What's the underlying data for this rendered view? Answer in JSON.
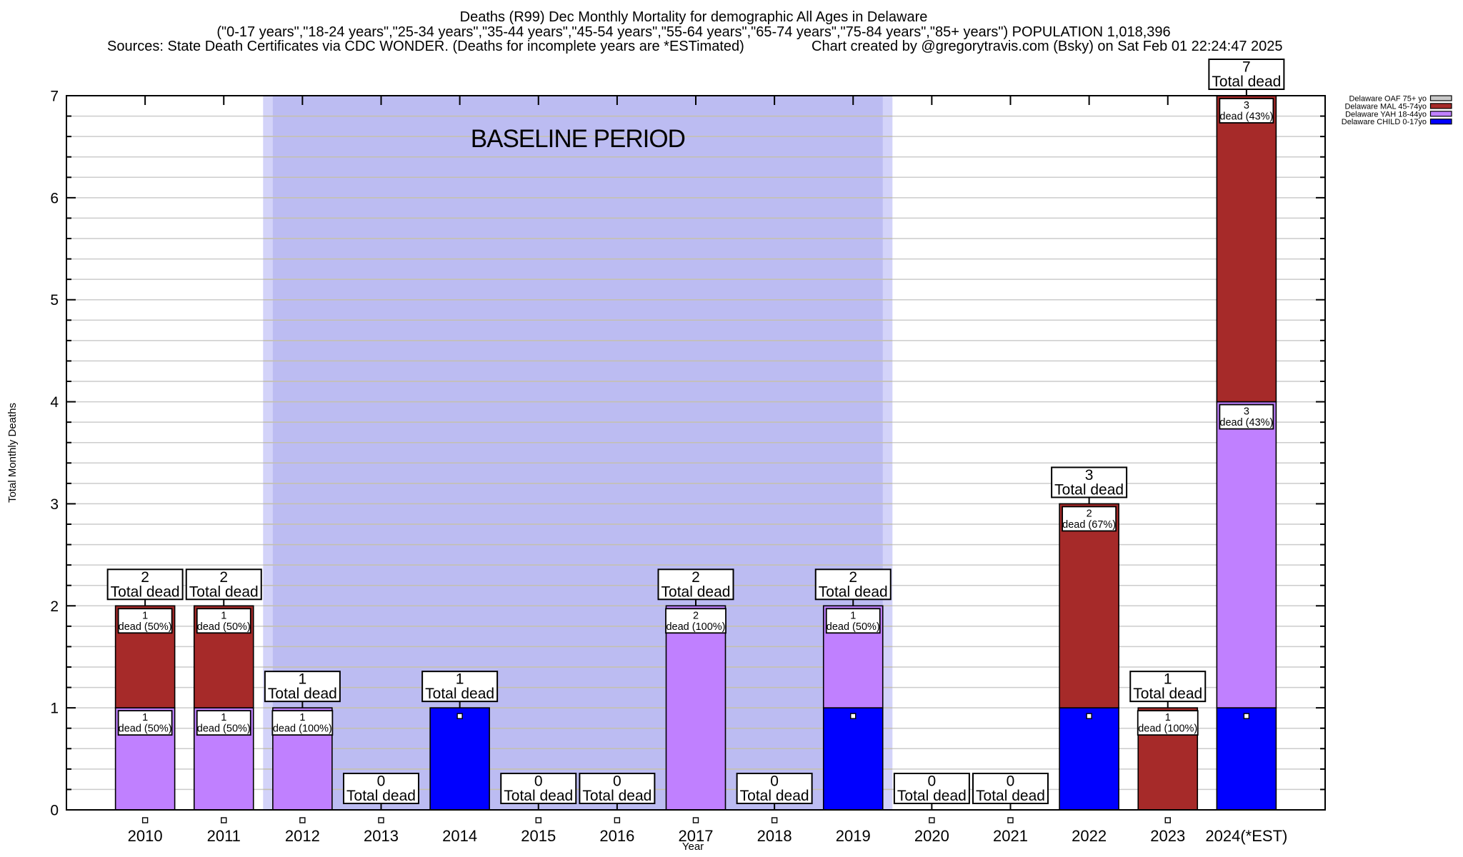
{
  "title": {
    "line1": "Deaths (R99) Dec Monthly Mortality for demographic All Ages in Delaware",
    "line2": "(\"0-17 years\",\"18-24 years\",\"25-34 years\",\"35-44 years\",\"45-54 years\",\"55-64 years\",\"65-74 years\",\"75-84 years\",\"85+ years\") POPULATION 1,018,396",
    "line3_left": "Sources: State Death Certificates via CDC WONDER. (Deaths for incomplete years are *ESTimated)",
    "line3_right": "Chart created by @gregorytravis.com (Bsky) on Sat Feb 01 22:24:47 2025"
  },
  "baseline_region": {
    "label": "BASELINE PERIOD",
    "start_category": "2012",
    "end_category": "2019",
    "fill_outer": "#d3d3f9",
    "fill_inner": "#bcbcf2",
    "grid_color_inside": "#c3bfb0"
  },
  "axes": {
    "ylabel": "Total Monthly Deaths",
    "xlabel": "Year",
    "ymin": 0,
    "ymax": 7,
    "ytick_labels": [
      "0",
      "1",
      "2",
      "3",
      "4",
      "5",
      "6",
      "7"
    ],
    "minor_steps_per_unit": 5,
    "grid_color": "#cccccc",
    "axis_color": "#000000"
  },
  "legend": {
    "items": [
      {
        "label": "Delaware OAF 75+ yo",
        "color": "#c8c8c8"
      },
      {
        "label": "Delaware MAL 45-74yo",
        "color": "#a62a29"
      },
      {
        "label": "Delaware YAH 18-44yo",
        "color": "#c080ff"
      },
      {
        "label": "Delaware CHILD 0-17yo",
        "color": "#0000ff"
      }
    ]
  },
  "markers": {
    "shape": "square",
    "fill": "#ffffff",
    "border": "#000000"
  },
  "chart_data": {
    "type": "bar",
    "stacked": true,
    "title": "Deaths (R99) Dec Monthly Mortality for demographic All Ages in Delaware",
    "xlabel": "Year",
    "ylabel": "Total Monthly Deaths",
    "ylim": [
      0,
      7
    ],
    "grid": true,
    "legend_position": "top-right",
    "categories": [
      "2010",
      "2011",
      "2012",
      "2013",
      "2014",
      "2015",
      "2016",
      "2017",
      "2018",
      "2019",
      "2020",
      "2021",
      "2022",
      "2023",
      "2024(*EST)"
    ],
    "series": [
      {
        "name": "Delaware CHILD 0-17yo",
        "color": "#0000ff",
        "values": [
          0,
          0,
          0,
          0,
          1,
          0,
          0,
          0,
          0,
          1,
          0,
          0,
          1,
          0,
          1
        ]
      },
      {
        "name": "Delaware YAH 18-44yo",
        "color": "#c080ff",
        "values": [
          1,
          1,
          1,
          0,
          0,
          0,
          0,
          2,
          0,
          1,
          0,
          0,
          0,
          0,
          3
        ]
      },
      {
        "name": "Delaware MAL 45-74yo",
        "color": "#a62a29",
        "values": [
          1,
          1,
          0,
          0,
          0,
          0,
          0,
          0,
          0,
          0,
          0,
          0,
          2,
          1,
          3
        ]
      },
      {
        "name": "Delaware OAF 75+ yo",
        "color": "#c8c8c8",
        "values": [
          0,
          0,
          0,
          0,
          0,
          0,
          0,
          0,
          0,
          0,
          0,
          0,
          0,
          0,
          0
        ]
      }
    ],
    "totals": [
      2,
      2,
      1,
      0,
      1,
      0,
      0,
      2,
      0,
      2,
      0,
      0,
      3,
      1,
      7
    ],
    "total_label": "Total dead",
    "segment_labels": [
      {
        "category": "2010",
        "series": "Delaware YAH 18-44yo",
        "count": "1",
        "detail": "dead (50%)"
      },
      {
        "category": "2010",
        "series": "Delaware MAL 45-74yo",
        "count": "1",
        "detail": "dead (50%)"
      },
      {
        "category": "2011",
        "series": "Delaware YAH 18-44yo",
        "count": "1",
        "detail": "dead (50%)"
      },
      {
        "category": "2011",
        "series": "Delaware MAL 45-74yo",
        "count": "1",
        "detail": "dead (50%)"
      },
      {
        "category": "2012",
        "series": "Delaware YAH 18-44yo",
        "count": "1",
        "detail": "dead (100%)"
      },
      {
        "category": "2017",
        "series": "Delaware YAH 18-44yo",
        "count": "2",
        "detail": "dead (100%)"
      },
      {
        "category": "2019",
        "series": "Delaware YAH 18-44yo",
        "count": "1",
        "detail": "dead (50%)"
      },
      {
        "category": "2022",
        "series": "Delaware MAL 45-74yo",
        "count": "2",
        "detail": "dead (67%)"
      },
      {
        "category": "2023",
        "series": "Delaware MAL 45-74yo",
        "count": "1",
        "detail": "dead (100%)"
      },
      {
        "category": "2024(*EST)",
        "series": "Delaware YAH 18-44yo",
        "count": "3",
        "detail": "dead (43%)"
      },
      {
        "category": "2024(*EST)",
        "series": "Delaware MAL 45-74yo",
        "count": "3",
        "detail": "dead (43%)"
      }
    ]
  }
}
